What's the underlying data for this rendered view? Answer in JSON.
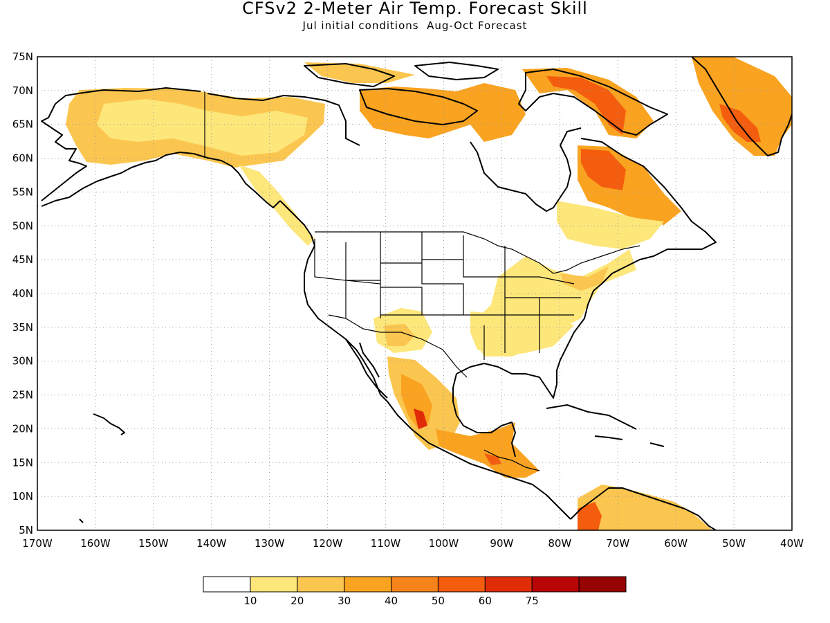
{
  "title": "CFSv2 2-Meter Air Temp. Forecast Skill",
  "subtitle": "Jul initial conditions  Aug-Oct Forecast",
  "map": {
    "lon_range": [
      -170,
      -40
    ],
    "lat_range": [
      5,
      75
    ],
    "lat_ticks": [
      "5N",
      "10N",
      "15N",
      "20N",
      "25N",
      "30N",
      "35N",
      "40N",
      "45N",
      "50N",
      "55N",
      "60N",
      "65N",
      "70N",
      "75N"
    ],
    "lon_ticks": [
      "170W",
      "160W",
      "150W",
      "140W",
      "130W",
      "120W",
      "110W",
      "100W",
      "90W",
      "80W",
      "70W",
      "60W",
      "50W",
      "40W"
    ],
    "grid": "dotted"
  },
  "colorbar": {
    "labels": [
      "10",
      "20",
      "30",
      "40",
      "50",
      "60",
      "75"
    ],
    "colors": [
      "#ffffff",
      "#fde67a",
      "#fbc64f",
      "#f9a321",
      "#f7841a",
      "#f45d0e",
      "#e02d08",
      "#b80606",
      "#960303"
    ]
  }
}
